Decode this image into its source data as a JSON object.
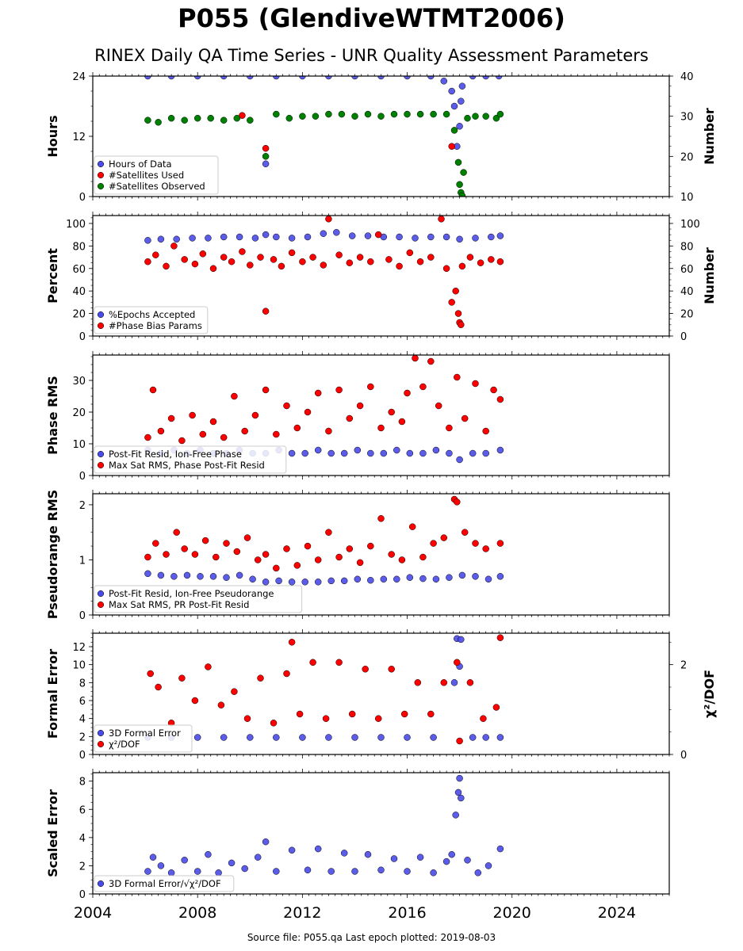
{
  "title": "P055 (GlendiveWTMT2006)",
  "subtitle": "RINEX Daily QA Time Series - UNR Quality Assessment Parameters",
  "footer": "Source file: P055.qa Last epoch plotted: 2019-08-03",
  "colors": {
    "blue": "#4a4ae8",
    "red": "#ff0000",
    "green": "#008000",
    "axis": "#000000"
  },
  "chart_data": [
    {
      "type": "scatter",
      "ylabel": "Hours",
      "y2label": "Number",
      "xlim": [
        2004,
        2026
      ],
      "ylim": [
        0,
        24
      ],
      "yticks": [
        0,
        12,
        24
      ],
      "y2lim": [
        10,
        40
      ],
      "y2ticks": [
        10,
        20,
        30,
        40
      ],
      "legend": "bottom-left",
      "series": [
        {
          "name": "Hours of Data",
          "color": "#4a4ae8",
          "axis": "left",
          "x": [
            2006.1,
            2007.0,
            2008.0,
            2009.0,
            2010.0,
            2010.6,
            2011.0,
            2012.0,
            2013.0,
            2014.0,
            2015.0,
            2016.0,
            2016.9,
            2017.4,
            2017.7,
            2017.8,
            2017.9,
            2018.0,
            2018.05,
            2018.1,
            2018.5,
            2019.0,
            2019.5
          ],
          "y": [
            24,
            24,
            24,
            24,
            24,
            6.5,
            24,
            24,
            24,
            24,
            24,
            24,
            24,
            23,
            21,
            18,
            10,
            14,
            19,
            22,
            24,
            24,
            24
          ]
        },
        {
          "name": "#Satellites Used",
          "color": "#ff0000",
          "axis": "right",
          "x": [
            2009.7,
            2010.6,
            2017.7
          ],
          "y": [
            30.2,
            22,
            22.5
          ]
        },
        {
          "name": "#Satellites Observed",
          "color": "#008000",
          "axis": "right",
          "x": [
            2006.1,
            2006.5,
            2007.0,
            2007.5,
            2008.0,
            2008.5,
            2009.0,
            2009.5,
            2010.0,
            2010.6,
            2011.0,
            2011.5,
            2012.0,
            2012.5,
            2013.0,
            2013.5,
            2014.0,
            2014.5,
            2015.0,
            2015.5,
            2016.0,
            2016.5,
            2017.0,
            2017.5,
            2017.8,
            2017.95,
            2018.0,
            2018.05,
            2018.1,
            2018.15,
            2018.3,
            2018.6,
            2019.0,
            2019.4,
            2019.55
          ],
          "y": [
            29.0,
            28.5,
            29.5,
            29.0,
            29.5,
            29.5,
            29.0,
            29.5,
            29.0,
            20.0,
            30.5,
            29.5,
            30.0,
            30.0,
            30.5,
            30.5,
            30.0,
            30.5,
            30.0,
            30.5,
            30.5,
            30.5,
            30.5,
            30.5,
            26.5,
            18.5,
            13.0,
            11.0,
            10.2,
            16.0,
            29.5,
            30.0,
            30.0,
            29.5,
            30.5
          ]
        }
      ]
    },
    {
      "type": "scatter",
      "ylabel": "Percent",
      "y2label": "Number",
      "xlim": [
        2004,
        2026
      ],
      "ylim": [
        0,
        107
      ],
      "yticks": [
        0,
        20,
        40,
        60,
        80,
        100
      ],
      "y2lim": [
        0,
        107
      ],
      "y2ticks": [
        0,
        20,
        40,
        60,
        80,
        100
      ],
      "legend": "bottom-left",
      "series": [
        {
          "name": "%Epochs Accepted",
          "color": "#4a4ae8",
          "axis": "left",
          "x": [
            2006.1,
            2006.6,
            2007.2,
            2007.8,
            2008.4,
            2009.0,
            2009.6,
            2010.2,
            2010.6,
            2011.0,
            2011.6,
            2012.2,
            2012.8,
            2013.3,
            2013.9,
            2014.5,
            2015.1,
            2015.7,
            2016.3,
            2016.9,
            2017.5,
            2018.0,
            2018.6,
            2019.2,
            2019.55
          ],
          "y": [
            85,
            86,
            86,
            87,
            87,
            88,
            88,
            87,
            90,
            88,
            87,
            88,
            91,
            92,
            89,
            89,
            88,
            88,
            87,
            88,
            88,
            86,
            87,
            88,
            89
          ]
        },
        {
          "name": "#Phase Bias Params",
          "color": "#ff0000",
          "axis": "right",
          "x": [
            2006.1,
            2006.4,
            2006.8,
            2007.1,
            2007.5,
            2007.9,
            2008.2,
            2008.6,
            2009.0,
            2009.3,
            2009.7,
            2010.0,
            2010.4,
            2010.6,
            2010.9,
            2011.2,
            2011.6,
            2012.0,
            2012.4,
            2012.8,
            2013.0,
            2013.4,
            2013.8,
            2014.2,
            2014.6,
            2014.9,
            2015.3,
            2015.7,
            2016.1,
            2016.5,
            2016.9,
            2017.3,
            2017.5,
            2017.7,
            2017.85,
            2017.95,
            2018.0,
            2018.05,
            2018.1,
            2018.4,
            2018.8,
            2019.2,
            2019.55
          ],
          "y": [
            66,
            72,
            62,
            80,
            68,
            64,
            73,
            60,
            70,
            66,
            75,
            63,
            70,
            22,
            68,
            62,
            74,
            66,
            70,
            63,
            104,
            72,
            65,
            70,
            66,
            90,
            68,
            62,
            74,
            66,
            70,
            104,
            60,
            30,
            40,
            20,
            12,
            10,
            62,
            70,
            65,
            68,
            66
          ]
        }
      ]
    },
    {
      "type": "scatter",
      "ylabel": "Phase RMS",
      "xlim": [
        2004,
        2026
      ],
      "ylim": [
        0,
        38
      ],
      "yticks": [
        0,
        10,
        20,
        30
      ],
      "legend": "bottom-left",
      "series": [
        {
          "name": "Post-Fit Resid, Ion-Free Phase",
          "color": "#4a4ae8",
          "axis": "left",
          "x": [
            2006.1,
            2006.6,
            2007.1,
            2007.6,
            2008.1,
            2008.6,
            2009.1,
            2009.6,
            2010.1,
            2010.6,
            2011.1,
            2011.6,
            2012.1,
            2012.6,
            2013.1,
            2013.6,
            2014.1,
            2014.6,
            2015.1,
            2015.6,
            2016.1,
            2016.6,
            2017.1,
            2017.6,
            2018.0,
            2018.5,
            2019.0,
            2019.55
          ],
          "y": [
            8,
            7,
            8,
            7,
            8,
            7,
            7,
            8,
            7,
            7,
            8,
            7,
            7,
            8,
            7,
            7,
            8,
            7,
            7,
            8,
            7,
            7,
            8,
            7,
            5,
            7,
            7,
            8
          ]
        },
        {
          "name": "Max Sat RMS, Phase Post-Fit Resid",
          "color": "#ff0000",
          "axis": "left",
          "x": [
            2006.1,
            2006.3,
            2006.6,
            2007.0,
            2007.4,
            2007.8,
            2008.2,
            2008.6,
            2009.0,
            2009.4,
            2009.8,
            2010.2,
            2010.6,
            2011.0,
            2011.4,
            2011.8,
            2012.2,
            2012.6,
            2013.0,
            2013.4,
            2013.8,
            2014.2,
            2014.6,
            2015.0,
            2015.4,
            2015.8,
            2016.0,
            2016.3,
            2016.6,
            2016.9,
            2017.2,
            2017.6,
            2017.9,
            2018.2,
            2018.6,
            2019.0,
            2019.3,
            2019.55
          ],
          "y": [
            12,
            27,
            14,
            18,
            11,
            19,
            13,
            17,
            12,
            25,
            14,
            19,
            27,
            13,
            22,
            15,
            20,
            26,
            14,
            27,
            18,
            22,
            28,
            15,
            20,
            17,
            26,
            37,
            28,
            36,
            22,
            15,
            31,
            18,
            29,
            14,
            27,
            24
          ]
        }
      ]
    },
    {
      "type": "scatter",
      "ylabel": "Pseudorange RMS",
      "xlim": [
        2004,
        2026
      ],
      "ylim": [
        0,
        2.2
      ],
      "yticks": [
        0,
        1,
        2
      ],
      "legend": "bottom-left",
      "series": [
        {
          "name": "Post-Fit Resid, Ion-Free Pseudorange",
          "color": "#4a4ae8",
          "axis": "left",
          "x": [
            2006.1,
            2006.6,
            2007.1,
            2007.6,
            2008.1,
            2008.6,
            2009.1,
            2009.6,
            2010.1,
            2010.6,
            2011.1,
            2011.6,
            2012.1,
            2012.6,
            2013.1,
            2013.6,
            2014.1,
            2014.6,
            2015.1,
            2015.6,
            2016.1,
            2016.6,
            2017.1,
            2017.6,
            2018.1,
            2018.6,
            2019.1,
            2019.55
          ],
          "y": [
            0.75,
            0.72,
            0.7,
            0.72,
            0.7,
            0.7,
            0.68,
            0.72,
            0.65,
            0.6,
            0.62,
            0.6,
            0.6,
            0.6,
            0.62,
            0.62,
            0.65,
            0.63,
            0.65,
            0.65,
            0.68,
            0.66,
            0.65,
            0.68,
            0.72,
            0.7,
            0.65,
            0.7
          ]
        },
        {
          "name": "Max Sat RMS, PR Post-Fit Resid",
          "color": "#ff0000",
          "axis": "left",
          "x": [
            2006.1,
            2006.4,
            2006.8,
            2007.2,
            2007.5,
            2007.9,
            2008.3,
            2008.7,
            2009.1,
            2009.5,
            2009.9,
            2010.3,
            2010.6,
            2011.0,
            2011.4,
            2011.8,
            2012.2,
            2012.6,
            2013.0,
            2013.4,
            2013.8,
            2014.2,
            2014.6,
            2015.0,
            2015.4,
            2015.8,
            2016.2,
            2016.6,
            2017.0,
            2017.4,
            2017.8,
            2017.9,
            2018.2,
            2018.6,
            2019.0,
            2019.55
          ],
          "y": [
            1.05,
            1.3,
            1.1,
            1.5,
            1.2,
            1.1,
            1.35,
            1.05,
            1.3,
            1.15,
            1.4,
            1.0,
            1.1,
            0.85,
            1.2,
            0.9,
            1.25,
            1.0,
            1.5,
            1.05,
            1.2,
            0.95,
            1.25,
            1.75,
            1.1,
            1.0,
            1.6,
            1.05,
            1.3,
            1.4,
            2.1,
            2.05,
            1.5,
            1.3,
            1.2,
            1.3
          ]
        }
      ]
    },
    {
      "type": "scatter",
      "ylabel": "Formal Error",
      "y2label": "χ²/DOF",
      "xlim": [
        2004,
        2026
      ],
      "ylim": [
        0,
        13.5
      ],
      "yticks": [
        0,
        2,
        4,
        6,
        8,
        10,
        12
      ],
      "y2lim": [
        0,
        2.7
      ],
      "y2ticks": [
        0,
        2
      ],
      "legend": "bottom-left",
      "series": [
        {
          "name": "3D Formal Error",
          "color": "#4a4ae8",
          "axis": "left",
          "x": [
            2006.1,
            2007.0,
            2008.0,
            2009.0,
            2010.0,
            2011.0,
            2012.0,
            2013.0,
            2014.0,
            2015.0,
            2016.0,
            2017.0,
            2017.8,
            2017.9,
            2018.0,
            2018.05,
            2018.5,
            2019.0,
            2019.55
          ],
          "y": [
            1.9,
            1.9,
            1.9,
            1.9,
            1.9,
            1.9,
            1.9,
            1.9,
            1.9,
            1.9,
            1.9,
            1.9,
            8.0,
            12.9,
            9.8,
            12.8,
            1.9,
            1.9,
            1.9
          ]
        },
        {
          "name": "χ²/DOF",
          "color": "#ff0000",
          "axis": "right",
          "x": [
            2006.2,
            2006.5,
            2007.0,
            2007.4,
            2007.9,
            2008.4,
            2008.9,
            2009.4,
            2009.9,
            2010.4,
            2010.9,
            2011.4,
            2011.6,
            2011.9,
            2012.4,
            2012.9,
            2013.4,
            2013.9,
            2014.4,
            2014.9,
            2015.4,
            2015.9,
            2016.4,
            2016.9,
            2017.4,
            2017.9,
            2018.0,
            2018.4,
            2018.9,
            2019.4,
            2019.55
          ],
          "y": [
            1.8,
            1.5,
            0.7,
            1.7,
            1.2,
            1.95,
            1.1,
            1.4,
            0.8,
            1.7,
            0.7,
            1.8,
            2.5,
            0.9,
            2.05,
            0.8,
            2.05,
            0.9,
            1.9,
            0.8,
            1.9,
            0.9,
            1.6,
            0.9,
            1.6,
            2.05,
            0.3,
            1.6,
            0.8,
            1.05,
            2.6
          ]
        }
      ]
    },
    {
      "type": "scatter",
      "ylabel": "Scaled Error",
      "xlim": [
        2004,
        2026
      ],
      "ylim": [
        0,
        8.6
      ],
      "yticks": [
        0,
        2,
        4,
        6,
        8
      ],
      "xticks": [
        2004,
        2008,
        2012,
        2016,
        2020,
        2024
      ],
      "legend": "bottom-left",
      "series": [
        {
          "name": "3D Formal Error/√χ²/DOF",
          "color": "#4a4ae8",
          "axis": "left",
          "x": [
            2006.1,
            2006.3,
            2006.6,
            2007.0,
            2007.5,
            2008.0,
            2008.4,
            2008.8,
            2009.3,
            2009.8,
            2010.3,
            2010.6,
            2011.0,
            2011.6,
            2012.2,
            2012.6,
            2013.1,
            2013.6,
            2014.0,
            2014.5,
            2015.0,
            2015.5,
            2016.0,
            2016.5,
            2017.0,
            2017.5,
            2017.7,
            2017.85,
            2017.95,
            2018.0,
            2018.05,
            2018.3,
            2018.7,
            2019.1,
            2019.55
          ],
          "y": [
            1.6,
            2.6,
            2.0,
            1.5,
            2.4,
            1.6,
            2.8,
            1.5,
            2.2,
            1.8,
            2.6,
            3.7,
            1.6,
            3.1,
            1.7,
            3.2,
            1.6,
            2.9,
            1.6,
            2.8,
            1.7,
            2.5,
            1.6,
            2.6,
            1.5,
            2.3,
            2.8,
            5.6,
            7.2,
            8.2,
            6.8,
            2.4,
            1.5,
            2.0,
            3.2
          ]
        }
      ]
    }
  ]
}
